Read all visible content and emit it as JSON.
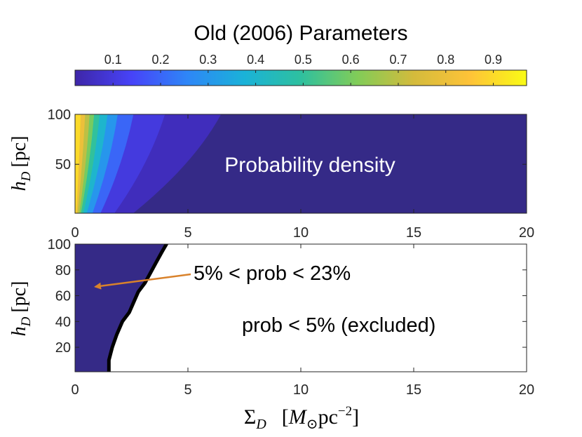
{
  "chart_data": [
    {
      "id": "colorbar",
      "type": "colorbar",
      "title": "Old (2006) Parameters",
      "range": [
        0.02,
        0.97
      ],
      "ticks": [
        0.1,
        0.2,
        0.3,
        0.4,
        0.5,
        0.6,
        0.7,
        0.8,
        0.9
      ],
      "tick_labels": [
        "0.1",
        "0.2",
        "0.3",
        "0.4",
        "0.5",
        "0.6",
        "0.7",
        "0.8",
        "0.9"
      ],
      "colormap": [
        "#3e26a8",
        "#4743f8",
        "#2e87f7",
        "#1ab2d8",
        "#2ec09f",
        "#81cc58",
        "#d4bb3c",
        "#fec338",
        "#f9fb15"
      ]
    },
    {
      "id": "top",
      "type": "heatmap",
      "annotation": "Probability density",
      "xlim": [
        0,
        20
      ],
      "ylim": [
        1,
        100
      ],
      "xticks": [
        0,
        5,
        10,
        15,
        20
      ],
      "xtick_labels": [
        "0",
        "5",
        "10",
        "15",
        "20"
      ],
      "yticks": [
        50,
        100
      ],
      "ytick_labels": [
        "50",
        "100"
      ],
      "ylabel_var": "h",
      "ylabel_sub": "D",
      "ylabel_unit": "[pc]",
      "contour_levels": [
        {
          "value": 0.9,
          "x_at_ymax": 0.25,
          "x_at_ymin": 0.05
        },
        {
          "value": 0.8,
          "x_at_ymax": 0.45,
          "x_at_ymin": 0.1
        },
        {
          "value": 0.7,
          "x_at_ymax": 0.65,
          "x_at_ymin": 0.18
        },
        {
          "value": 0.6,
          "x_at_ymax": 0.85,
          "x_at_ymin": 0.25
        },
        {
          "value": 0.5,
          "x_at_ymax": 1.1,
          "x_at_ymin": 0.35
        },
        {
          "value": 0.4,
          "x_at_ymax": 1.45,
          "x_at_ymin": 0.5
        },
        {
          "value": 0.3,
          "x_at_ymax": 1.9,
          "x_at_ymin": 0.75
        },
        {
          "value": 0.2,
          "x_at_ymax": 2.6,
          "x_at_ymin": 1.1
        },
        {
          "value": 0.1,
          "x_at_ymax": 4.0,
          "x_at_ymin": 1.7
        },
        {
          "value": 0.05,
          "x_at_ymax": 6.5,
          "x_at_ymin": 2.5
        }
      ]
    },
    {
      "id": "bottom",
      "type": "region",
      "xlim": [
        0,
        20
      ],
      "ylim": [
        1,
        100
      ],
      "xticks": [
        0,
        5,
        10,
        15,
        20
      ],
      "xtick_labels": [
        "0",
        "5",
        "10",
        "15",
        "20"
      ],
      "yticks": [
        20,
        40,
        60,
        80,
        100
      ],
      "ytick_labels": [
        "20",
        "40",
        "60",
        "80",
        "100"
      ],
      "ylabel_var": "h",
      "ylabel_sub": "D",
      "ylabel_unit": "[pc]",
      "xlabel_sym": "Σ",
      "xlabel_sub": "D",
      "xlabel_unit_m": "M",
      "xlabel_unit_sun": "⊙",
      "xlabel_unit_pc": "pc",
      "xlabel_unit_exp": "−2",
      "boundary": [
        {
          "x": 1.5,
          "y": 1
        },
        {
          "x": 1.5,
          "y": 10
        },
        {
          "x": 1.65,
          "y": 20
        },
        {
          "x": 1.85,
          "y": 30
        },
        {
          "x": 2.1,
          "y": 40
        },
        {
          "x": 2.4,
          "y": 47
        },
        {
          "x": 2.6,
          "y": 55
        },
        {
          "x": 2.8,
          "y": 63
        },
        {
          "x": 3.1,
          "y": 70
        },
        {
          "x": 3.35,
          "y": 78
        },
        {
          "x": 3.6,
          "y": 86
        },
        {
          "x": 3.85,
          "y": 94
        },
        {
          "x": 4.05,
          "y": 100
        }
      ],
      "region_inside": "5% < prob < 23%",
      "region_outside": "prob < 5% (excluded)",
      "arrow_target": {
        "x": 0.9,
        "y": 67
      },
      "region_color": "#352a87",
      "arrow_color": "#d9822b"
    }
  ]
}
